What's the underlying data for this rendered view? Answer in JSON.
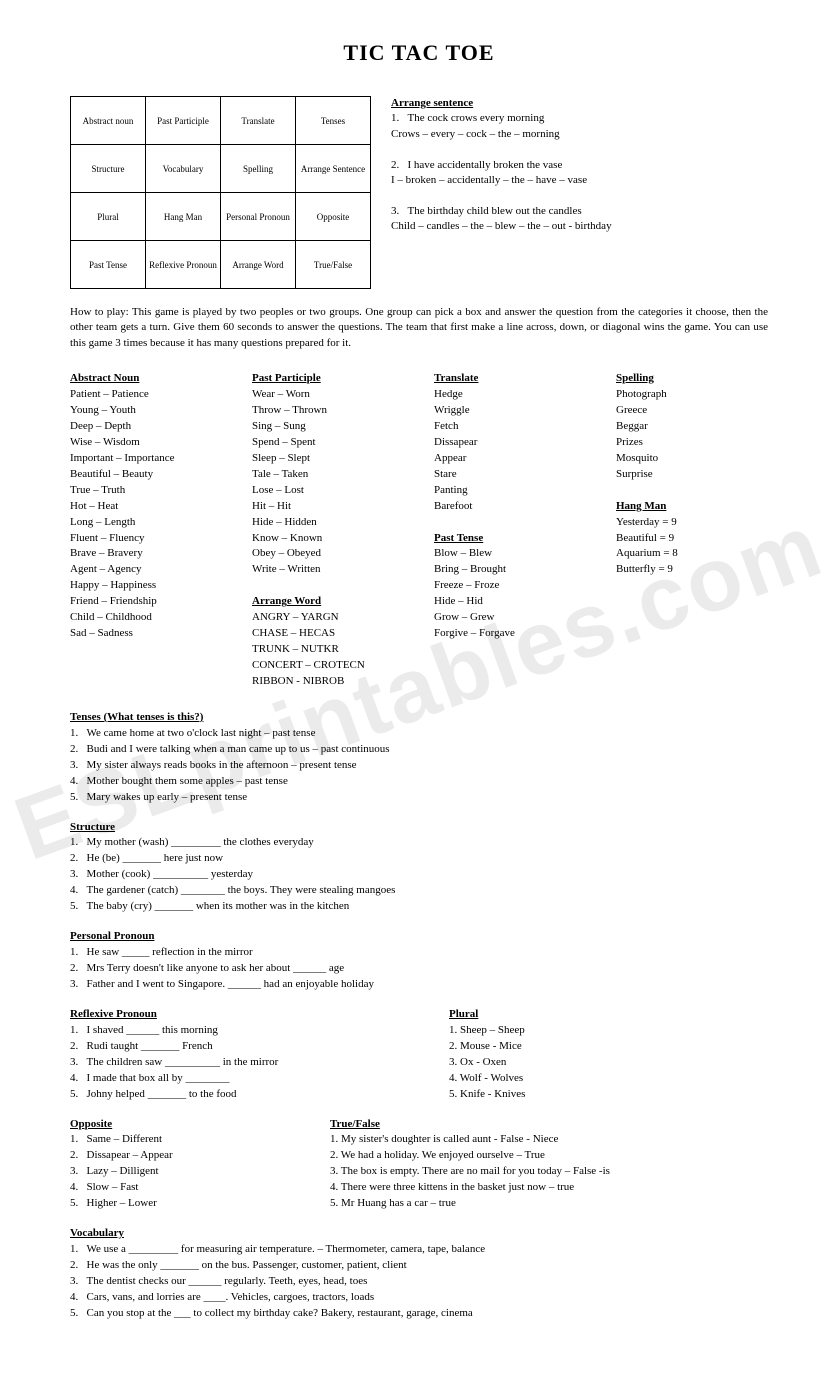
{
  "title": "TIC TAC TOE",
  "watermark": "ESLprintables.com",
  "grid": [
    [
      "Abstract noun",
      "Past Participle",
      "Translate",
      "Tenses"
    ],
    [
      "Structure",
      "Vocabulary",
      "Spelling",
      "Arrange Sentence"
    ],
    [
      "Plural",
      "Hang Man",
      "Personal Pronoun",
      "Opposite"
    ],
    [
      "Past Tense",
      "Reflexive Pronoun",
      "Arrange Word",
      "True/False"
    ]
  ],
  "arrange_sentence": {
    "heading": "Arrange sentence",
    "items": [
      {
        "num": "1",
        "line1": "The cock crows every morning",
        "line2": "Crows – every – cock – the – morning"
      },
      {
        "num": "2",
        "line1": "I have accidentally broken the vase",
        "line2": "I – broken – accidentally – the – have – vase"
      },
      {
        "num": "3",
        "line1": "The birthday child blew out the candles",
        "line2": "Child – candles – the – blew – the – out - birthday"
      }
    ]
  },
  "howto": "How to play: This game is played by two peoples or two groups. One group can pick a box and answer the question from the categories it choose, then the other team gets a turn. Give them 60 seconds to answer the questions. The team that first make a line across, down, or diagonal wins the game. You can use this game 3 times because it has many questions prepared for it.",
  "col1": {
    "heading": "Abstract Noun",
    "items": [
      "Patient – Patience",
      "Young – Youth",
      "Deep – Depth",
      "Wise – Wisdom",
      "Important – Importance",
      "Beautiful – Beauty",
      "True – Truth",
      "Hot – Heat",
      "Long – Length",
      "Fluent – Fluency",
      "Brave – Bravery",
      "Agent – Agency",
      "Happy – Happiness",
      "Friend – Friendship",
      "Child – Childhood",
      "Sad – Sadness"
    ]
  },
  "col2a": {
    "heading": "Past Participle",
    "items": [
      "Wear – Worn",
      "Throw – Thrown",
      "Sing – Sung",
      "Spend – Spent",
      "Sleep – Slept",
      "Tale – Taken",
      "Lose – Lost",
      "Hit – Hit",
      "Hide – Hidden",
      "Know – Known",
      "Obey – Obeyed",
      "Write – Written"
    ]
  },
  "col2b": {
    "heading": "Arrange Word",
    "items": [
      "ANGRY – YARGN",
      "CHASE – HECAS",
      "TRUNK – NUTKR",
      "CONCERT – CROTECN",
      "RIBBON - NIBROB"
    ]
  },
  "col3a": {
    "heading": "Translate",
    "items": [
      "Hedge",
      "Wriggle",
      "Fetch",
      "Dissapear",
      "Appear",
      "Stare",
      "Panting",
      "Barefoot"
    ]
  },
  "col3b": {
    "heading": "Past Tense",
    "items": [
      "Blow – Blew",
      "Bring – Brought",
      "Freeze – Froze",
      "Hide – Hid",
      "Grow – Grew",
      "Forgive – Forgave"
    ]
  },
  "col4a": {
    "heading": "Spelling",
    "items": [
      "Photograph",
      "Greece",
      "Beggar",
      "Prizes",
      "Mosquito",
      "Surprise"
    ]
  },
  "col4b": {
    "heading": "Hang Man",
    "items": [
      "Yesterday = 9",
      "Beautiful = 9",
      "Aquarium = 8",
      "Butterfly = 9"
    ]
  },
  "tenses": {
    "heading": "Tenses (What tenses is this?)",
    "items": [
      "We came home at two o'clock last night – past tense",
      "Budi and I were talking when a man came up to us – past continuous",
      "My sister always reads books in the afternoon – present tense",
      "Mother bought them some apples – past tense",
      "Mary wakes up early – present tense"
    ]
  },
  "structure": {
    "heading": "Structure",
    "items": [
      "My mother (wash) _________ the clothes everyday",
      "He (be) _______ here just now",
      "Mother (cook) __________ yesterday",
      "The gardener (catch) ________ the boys. They were stealing mangoes",
      "The baby (cry) _______ when its mother was in the kitchen"
    ]
  },
  "personal_pronoun": {
    "heading": "Personal Pronoun",
    "items": [
      "He saw _____ reflection in the mirror",
      "Mrs Terry doesn't like anyone to ask her about ______ age",
      "Father and I went to Singapore. ______ had an enjoyable holiday"
    ]
  },
  "reflexive_pronoun": {
    "heading": "Reflexive Pronoun",
    "items": [
      "I shaved ______ this morning",
      "Rudi taught _______ French",
      "The children saw __________ in the mirror",
      "I made that box all by ________",
      "Johny helped _______ to the food"
    ]
  },
  "plural": {
    "heading": "Plural",
    "items": [
      "Sheep – Sheep",
      "Mouse - Mice",
      "Ox - Oxen",
      "Wolf - Wolves",
      "Knife - Knives"
    ]
  },
  "opposite": {
    "heading": "Opposite",
    "items": [
      "Same – Different",
      "Dissapear – Appear",
      "Lazy – Dilligent",
      "Slow – Fast",
      "Higher – Lower"
    ]
  },
  "true_false": {
    "heading": "True/False",
    "items": [
      "My sister's doughter is called aunt - False - Niece",
      "We had a holiday. We enjoyed ourselve – True",
      "The box is empty. There are no mail for you today – False -is",
      "There were three kittens in the basket just now – true",
      "Mr Huang has a car – true"
    ]
  },
  "vocabulary": {
    "heading": "Vocabulary",
    "items": [
      "We use a _________ for measuring air temperature. – Thermometer, camera, tape, balance",
      "He was the only _______ on the bus. Passenger, customer, patient, client",
      "The dentist checks our ______ regularly. Teeth, eyes, head, toes",
      "Cars, vans, and lorries are ____. Vehicles, cargoes, tractors, loads",
      "Can you stop at the ___ to collect my birthday cake? Bakery, restaurant, garage, cinema"
    ]
  }
}
